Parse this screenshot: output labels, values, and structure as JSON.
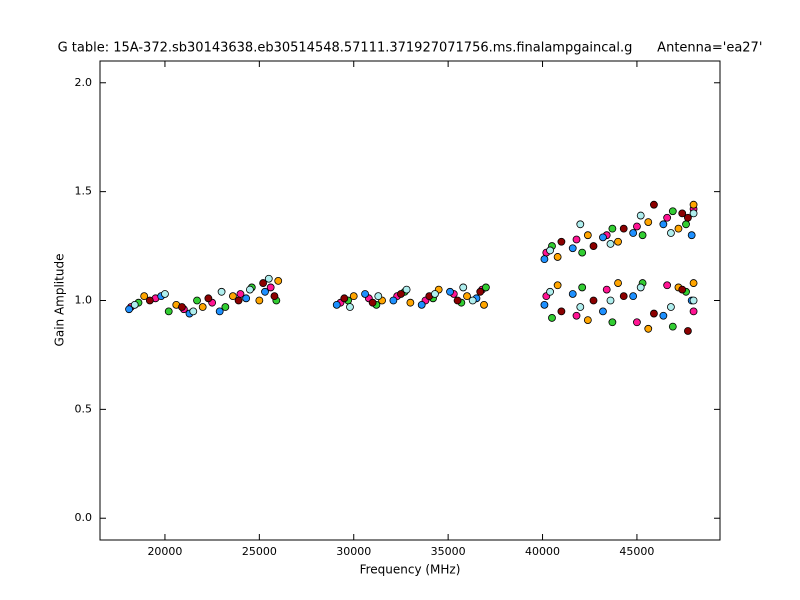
{
  "chart_data": {
    "type": "scatter",
    "title": "G table: 15A-372.sb30143638.eb30514548.57111.371927071756.ms.finalampgaincal.g      Antenna='ea27'",
    "x_label": "Frequency (MHz)",
    "y_label": "Gain Amplitude",
    "xlim": [
      16560,
      49400
    ],
    "xticks": [
      20000,
      25000,
      30000,
      35000,
      40000,
      45000
    ],
    "ylim": [
      -0.1,
      2.1
    ],
    "yticks": [
      {
        "value": 0,
        "label": "0.0"
      },
      0.5,
      {
        "value": 1,
        "label": "1.0"
      },
      1.5,
      {
        "value": 2,
        "label": "2.0"
      }
    ],
    "grid": false,
    "series": [
      {
        "color": "#ff1493",
        "x": [
          18200,
          19500,
          21000,
          22500,
          24000,
          25600,
          29300,
          30800,
          32300,
          33800,
          35300,
          36800,
          40200,
          41800,
          43400,
          45000,
          46600,
          48000,
          40200,
          41800,
          43400,
          45000,
          46600,
          48000
        ],
        "values": [
          0.97,
          1.01,
          0.96,
          0.99,
          1.03,
          1.06,
          0.99,
          1.01,
          1.02,
          1.0,
          1.03,
          1.05,
          1.02,
          0.93,
          1.05,
          0.9,
          1.07,
          0.95,
          1.22,
          1.28,
          1.3,
          1.34,
          1.38,
          1.42
        ]
      },
      {
        "color": "#32cd32",
        "x": [
          18600,
          20200,
          21700,
          23200,
          24600,
          25900,
          29700,
          31200,
          32700,
          34200,
          35700,
          37000,
          40500,
          42100,
          43700,
          45300,
          46900,
          47600,
          40500,
          42100,
          43700,
          45300,
          46900,
          47600
        ],
        "values": [
          0.99,
          0.95,
          1.0,
          0.97,
          1.06,
          1.0,
          1.0,
          0.98,
          1.04,
          1.01,
          0.99,
          1.06,
          0.92,
          1.06,
          0.9,
          1.08,
          0.88,
          1.04,
          1.25,
          1.22,
          1.33,
          1.3,
          1.41,
          1.35
        ]
      },
      {
        "color": "#ffa500",
        "x": [
          18900,
          20600,
          22000,
          23600,
          25000,
          26000,
          30000,
          31500,
          33000,
          34500,
          36000,
          36900,
          40800,
          42400,
          44000,
          45600,
          47200,
          48000,
          40800,
          42400,
          44000,
          45600,
          47200,
          48000
        ],
        "values": [
          1.02,
          0.98,
          0.97,
          1.02,
          1.0,
          1.09,
          1.02,
          1.0,
          0.99,
          1.05,
          1.02,
          0.98,
          1.07,
          0.91,
          1.08,
          0.87,
          1.06,
          1.08,
          1.2,
          1.3,
          1.27,
          1.36,
          1.33,
          1.44
        ]
      },
      {
        "color": "#1e90ff",
        "x": [
          18100,
          19800,
          21300,
          22900,
          24300,
          25300,
          29100,
          30600,
          32100,
          33600,
          35100,
          36500,
          40100,
          41600,
          43200,
          44800,
          46400,
          47900,
          40100,
          41600,
          43200,
          44800,
          46400,
          47900
        ],
        "values": [
          0.96,
          1.02,
          0.94,
          0.95,
          1.01,
          1.04,
          0.98,
          1.03,
          1.0,
          0.98,
          1.04,
          1.01,
          0.98,
          1.03,
          0.95,
          1.02,
          0.93,
          1.0,
          1.19,
          1.24,
          1.29,
          1.31,
          1.35,
          1.3
        ]
      },
      {
        "color": "#8b0000",
        "x": [
          19200,
          20900,
          22300,
          23900,
          25200,
          25800,
          29500,
          31000,
          32500,
          34000,
          35500,
          36700,
          41000,
          42700,
          44300,
          45900,
          47400,
          47700,
          41000,
          42700,
          44300,
          45900,
          47400,
          47700
        ],
        "values": [
          1.0,
          0.97,
          1.01,
          1.0,
          1.08,
          1.02,
          1.01,
          0.99,
          1.03,
          1.02,
          1.0,
          1.04,
          0.95,
          1.0,
          1.02,
          0.94,
          1.05,
          0.86,
          1.27,
          1.25,
          1.33,
          1.44,
          1.4,
          1.38
        ]
      },
      {
        "color": "#afeeee",
        "x": [
          18400,
          20000,
          21500,
          23000,
          24500,
          25500,
          29800,
          31300,
          32800,
          34300,
          35800,
          36300,
          40400,
          42000,
          43600,
          45200,
          46800,
          48000,
          40400,
          42000,
          43600,
          45200,
          46800,
          48000
        ],
        "values": [
          0.98,
          1.03,
          0.95,
          1.04,
          1.05,
          1.1,
          0.97,
          1.02,
          1.05,
          1.03,
          1.06,
          1.0,
          1.04,
          0.97,
          1.0,
          1.06,
          0.97,
          1.0,
          1.23,
          1.35,
          1.26,
          1.39,
          1.31,
          1.4
        ]
      }
    ]
  }
}
